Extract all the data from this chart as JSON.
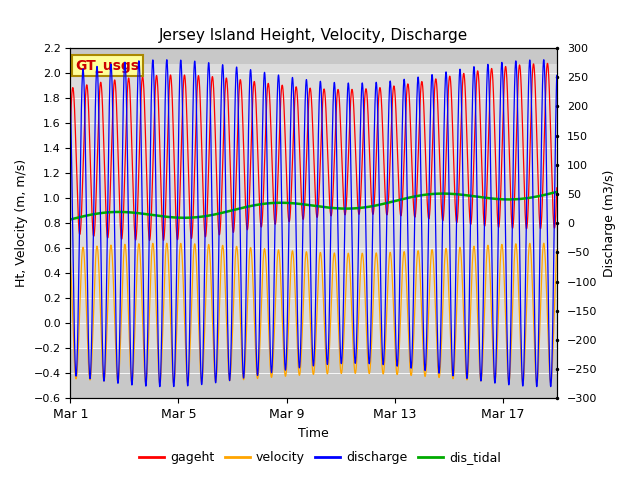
{
  "title": "Jersey Island Height, Velocity, Discharge",
  "xlabel": "Time",
  "ylabel_left": "Ht, Velocity (m, m/s)",
  "ylabel_right": "Discharge (m3/s)",
  "ylim_left": [
    -0.6,
    2.2
  ],
  "ylim_right": [
    -300,
    300
  ],
  "yticks_left": [
    -0.6,
    -0.4,
    -0.2,
    0.0,
    0.2,
    0.4,
    0.6,
    0.8,
    1.0,
    1.2,
    1.4,
    1.6,
    1.8,
    2.0,
    2.2
  ],
  "yticks_right": [
    -300,
    -250,
    -200,
    -150,
    -100,
    -50,
    0,
    50,
    100,
    150,
    200,
    250,
    300
  ],
  "xtick_labels": [
    "Mar 1",
    "Mar 5",
    "Mar 9",
    "Mar 13",
    "Mar 17"
  ],
  "xtick_positions": [
    0,
    4,
    8,
    12,
    16
  ],
  "xlim": [
    0,
    18
  ],
  "days": 18,
  "tidal_period_hours": 12.4,
  "colors": {
    "gageht": "#ff0000",
    "velocity": "#ffa500",
    "discharge": "#0000ff",
    "dis_tidal": "#00aa00",
    "plot_bg_dark": "#c8c8c8",
    "plot_bg_light": "#dcdcdc",
    "annotation_box_bg": "#ffff99",
    "annotation_box_border": "#aa8800",
    "annotation_text": "#cc0000"
  },
  "legend_labels": [
    "gageht",
    "velocity",
    "discharge",
    "dis_tidal"
  ],
  "annotation_text": "GT_usgs"
}
